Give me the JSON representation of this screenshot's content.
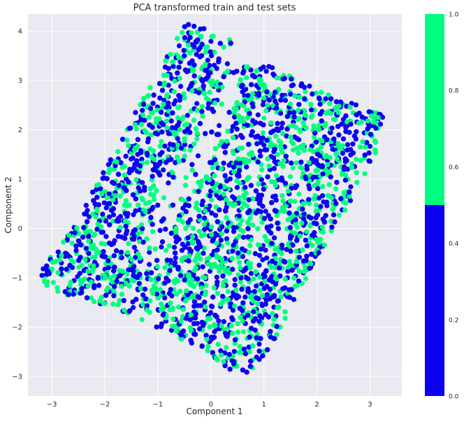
{
  "chart_data": {
    "type": "scatter",
    "title": "PCA transformed train and test sets",
    "xlabel": "Component 1",
    "ylabel": "Component 2",
    "xlim": [
      -3.45,
      3.6
    ],
    "ylim": [
      -3.4,
      4.35
    ],
    "xticks": [
      -3,
      -2,
      -1,
      0,
      1,
      2,
      3
    ],
    "yticks": [
      -3,
      -2,
      -1,
      0,
      1,
      2,
      3,
      4
    ],
    "grid": true,
    "colormap": {
      "ticks": [
        0.0,
        0.2,
        0.4,
        0.6,
        0.8,
        1.0
      ],
      "tick_labels": [
        "0.0",
        "0.2",
        "0.4",
        "0.6",
        "0.8",
        "1.0"
      ],
      "bins": [
        {
          "range": [
            0.0,
            0.5
          ],
          "color": "#0c00f2"
        },
        {
          "range": [
            0.5,
            1.0
          ],
          "color": "#00ff80"
        }
      ]
    },
    "series": [
      {
        "value": 0,
        "color": "#0c00f2"
      },
      {
        "value": 1,
        "color": "#00ff80"
      }
    ],
    "region_outline": [
      [
        -0.45,
        4.2
      ],
      [
        0.4,
        3.85
      ],
      [
        0.35,
        3.3
      ],
      [
        1.1,
        3.3
      ],
      [
        1.7,
        3.0
      ],
      [
        2.5,
        2.6
      ],
      [
        3.3,
        2.3
      ],
      [
        3.2,
        1.7
      ],
      [
        2.6,
        0.5
      ],
      [
        1.7,
        -1.2
      ],
      [
        1.3,
        -2.1
      ],
      [
        0.8,
        -2.9
      ],
      [
        0.55,
        -3.0
      ],
      [
        -0.15,
        -2.5
      ],
      [
        -1.4,
        -1.8
      ],
      [
        -2.4,
        -1.45
      ],
      [
        -3.2,
        -1.2
      ],
      [
        -3.2,
        -0.8
      ],
      [
        -2.8,
        -0.3
      ],
      [
        -2.3,
        0.6
      ],
      [
        -1.8,
        1.6
      ],
      [
        -1.3,
        2.6
      ],
      [
        -0.8,
        3.6
      ]
    ],
    "gap_outline": [
      [
        0.4,
        3.2
      ],
      [
        0.15,
        2.5
      ],
      [
        -0.2,
        1.85
      ],
      [
        -0.7,
        1.0
      ],
      [
        -1.1,
        0.2
      ],
      [
        -1.3,
        -0.6
      ],
      [
        -1.2,
        -0.9
      ],
      [
        -0.9,
        -0.4
      ],
      [
        -0.5,
        0.5
      ],
      [
        -0.05,
        1.3
      ],
      [
        0.3,
        2.1
      ],
      [
        0.55,
        2.8
      ]
    ]
  }
}
